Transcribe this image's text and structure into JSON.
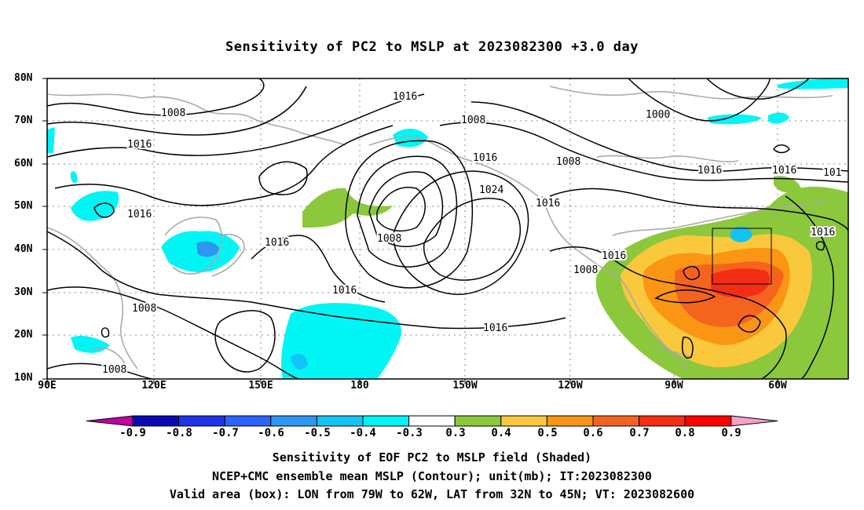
{
  "title": "Sensitivity of PC2 to MSLP at 2023082300 +3.0 day",
  "lat_labels": [
    "80N",
    "70N",
    "60N",
    "50N",
    "40N",
    "30N",
    "20N",
    "10N"
  ],
  "lon_labels": [
    "90E",
    "120E",
    "150E",
    "180",
    "150W",
    "120W",
    "90W",
    "60W"
  ],
  "contour_labels": [
    "1016",
    "1008",
    "1000",
    "1016",
    "1008",
    "1016",
    "1008",
    "1016",
    "1024",
    "1016",
    "1016",
    "1008",
    "1016",
    "1016",
    "1016",
    "1008",
    "1008",
    "1016",
    "1016",
    "1008",
    "101",
    "1016"
  ],
  "colorbar": {
    "ticks": [
      "-0.9",
      "-0.8",
      "-0.7",
      "-0.6",
      "-0.5",
      "-0.4",
      "-0.3",
      "0.3",
      "0.4",
      "0.5",
      "0.6",
      "0.7",
      "0.8",
      "0.9"
    ],
    "colors": [
      "#c000a0",
      "#0a0ab4",
      "#1e32e6",
      "#2d64ff",
      "#2d96f0",
      "#14c3f5",
      "#00f5f5",
      "#ffffff",
      "#8cc83c",
      "#fac83c",
      "#fa9614",
      "#f5641e",
      "#f52d14",
      "#ff0000",
      "#f7a0c8"
    ]
  },
  "captions": {
    "line1": "Sensitivity of EOF PC2 to MSLP field (Shaded)",
    "line2": "NCEP+CMC ensemble mean MSLP (Contour); unit(mb); IT:2023082300",
    "line3": "Valid area (box): LON from 79W to 62W, LAT from 32N to 45N; VT: 2023082600"
  }
}
